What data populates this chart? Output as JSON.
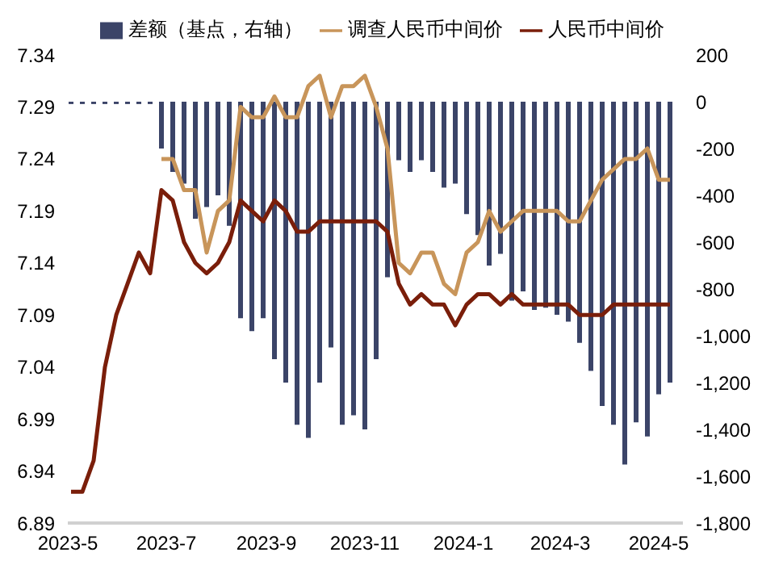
{
  "chart_data": {
    "type": "line",
    "x": [
      "2023-05-03",
      "2023-05-10",
      "2023-05-17",
      "2023-05-24",
      "2023-05-31",
      "2023-06-07",
      "2023-06-14",
      "2023-06-21",
      "2023-06-28",
      "2023-07-05",
      "2023-07-12",
      "2023-07-19",
      "2023-07-26",
      "2023-08-02",
      "2023-08-09",
      "2023-08-16",
      "2023-08-23",
      "2023-08-30",
      "2023-09-06",
      "2023-09-13",
      "2023-09-20",
      "2023-09-27",
      "2023-10-04",
      "2023-10-11",
      "2023-10-18",
      "2023-10-25",
      "2023-11-01",
      "2023-11-08",
      "2023-11-15",
      "2023-11-22",
      "2023-11-29",
      "2023-12-06",
      "2023-12-13",
      "2023-12-20",
      "2023-12-27",
      "2024-01-03",
      "2024-01-10",
      "2024-01-17",
      "2024-01-24",
      "2024-01-31",
      "2024-02-07",
      "2024-02-14",
      "2024-02-21",
      "2024-02-28",
      "2024-03-06",
      "2024-03-13",
      "2024-03-20",
      "2024-03-27",
      "2024-04-03",
      "2024-04-10",
      "2024-04-17",
      "2024-04-24",
      "2024-05-01",
      "2024-05-08"
    ],
    "series": [
      {
        "name": "差额（基点，右轴）",
        "type": "bar",
        "axis": "y2",
        "color": "#3b4468",
        "values": [
          -10,
          -10,
          -10,
          -10,
          -10,
          -10,
          -10,
          -10,
          -200,
          -300,
          -350,
          -500,
          -450,
          -400,
          -530,
          -925,
          -980,
          -925,
          -1100,
          -1200,
          -1380,
          -1436,
          -1200,
          -1050,
          -1380,
          -1340,
          -1400,
          -1100,
          -750,
          -250,
          -300,
          -250,
          -300,
          -367,
          -350,
          -480,
          -570,
          -700,
          -650,
          -850,
          -810,
          -890,
          -880,
          -910,
          -940,
          -1030,
          -1150,
          -1300,
          -1380,
          -1550,
          -1370,
          -1430,
          -1250,
          -1200
        ]
      },
      {
        "name": "调查人民币中间价",
        "color": "#c8955a",
        "values": [
          null,
          null,
          null,
          null,
          null,
          null,
          null,
          null,
          7.24,
          7.24,
          7.21,
          7.21,
          7.15,
          7.19,
          7.2,
          7.29,
          7.28,
          7.28,
          7.3,
          7.28,
          7.28,
          7.31,
          7.32,
          7.28,
          7.31,
          7.31,
          7.32,
          7.29,
          7.25,
          7.14,
          7.13,
          7.15,
          7.15,
          7.12,
          7.11,
          7.15,
          7.16,
          7.19,
          7.17,
          7.18,
          7.19,
          7.19,
          7.19,
          7.19,
          7.18,
          7.18,
          7.2,
          7.22,
          7.23,
          7.24,
          7.24,
          7.25,
          7.22,
          7.22
        ]
      },
      {
        "name": "人民币中间价",
        "color": "#7a1e0a",
        "values": [
          6.92,
          6.92,
          6.95,
          7.04,
          7.09,
          7.12,
          7.15,
          7.13,
          7.21,
          7.2,
          7.16,
          7.14,
          7.13,
          7.14,
          7.16,
          7.2,
          7.19,
          7.18,
          7.2,
          7.19,
          7.17,
          7.17,
          7.18,
          7.18,
          7.18,
          7.18,
          7.18,
          7.18,
          7.17,
          7.12,
          7.1,
          7.11,
          7.1,
          7.1,
          7.08,
          7.1,
          7.11,
          7.11,
          7.1,
          7.11,
          7.1,
          7.1,
          7.1,
          7.1,
          7.1,
          7.09,
          7.09,
          7.09,
          7.1,
          7.1,
          7.1,
          7.1,
          7.1,
          7.1
        ]
      }
    ],
    "xlim": [
      "2023-05-01",
      "2024-05-16"
    ],
    "xticks": [
      {
        "value": "2023-05-01",
        "label": "2023-5"
      },
      {
        "value": "2023-07-01",
        "label": "2023-7"
      },
      {
        "value": "2023-09-01",
        "label": "2023-9"
      },
      {
        "value": "2023-11-01",
        "label": "2023-11"
      },
      {
        "value": "2024-01-01",
        "label": "2024-1"
      },
      {
        "value": "2024-03-01",
        "label": "2024-3"
      },
      {
        "value": "2024-05-01",
        "label": "2024-5"
      }
    ],
    "ylim": [
      6.89,
      7.34
    ],
    "yticks": [
      6.89,
      6.94,
      6.99,
      7.04,
      7.09,
      7.14,
      7.19,
      7.24,
      7.29,
      7.34
    ],
    "y2lim": [
      -1800,
      200
    ],
    "y2ticks": [
      {
        "value": -1800,
        "label": "-1,800"
      },
      {
        "value": -1600,
        "label": "-1,600"
      },
      {
        "value": -1400,
        "label": "-1,400"
      },
      {
        "value": -1200,
        "label": "-1,200"
      },
      {
        "value": -1000,
        "label": "-1,000"
      },
      {
        "value": -800,
        "label": "-800"
      },
      {
        "value": -600,
        "label": "-600"
      },
      {
        "value": -400,
        "label": "-400"
      },
      {
        "value": -200,
        "label": "-200"
      },
      {
        "value": 0,
        "label": "0"
      },
      {
        "value": 200,
        "label": "200"
      }
    ],
    "grid": false,
    "legend": "top"
  }
}
